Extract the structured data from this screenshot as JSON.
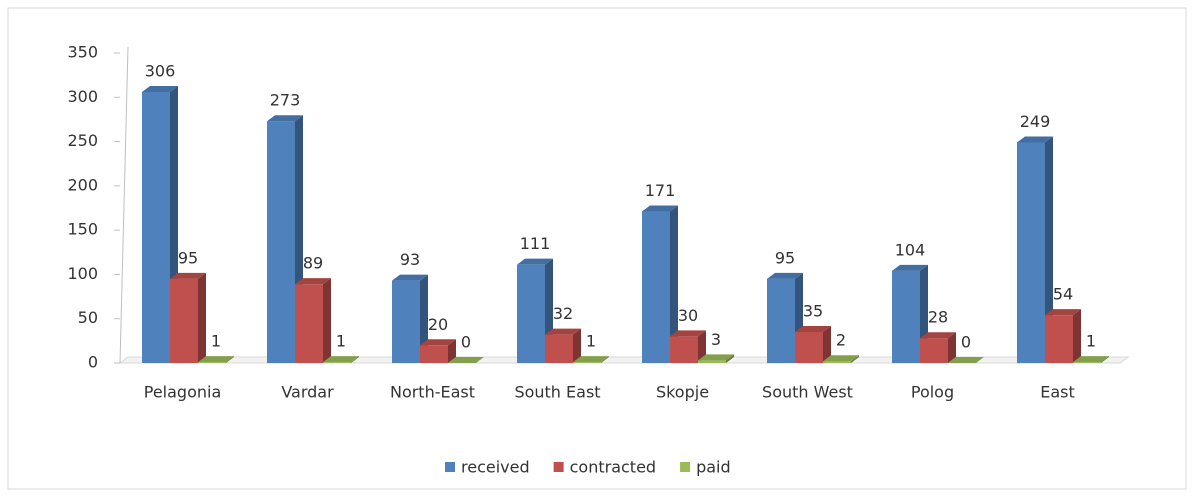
{
  "chart_data": {
    "type": "bar3d",
    "categories": [
      "Pelagonia",
      "Vardar",
      "North-East",
      "South East",
      "Skopje",
      "South West",
      "Polog",
      "East"
    ],
    "series": [
      {
        "name": "received",
        "color": "#4f81bd",
        "values": [
          306,
          273,
          93,
          111,
          171,
          95,
          104,
          249
        ]
      },
      {
        "name": "contracted",
        "color": "#c0504d",
        "values": [
          95,
          89,
          20,
          32,
          30,
          35,
          28,
          54
        ]
      },
      {
        "name": "paid",
        "color": "#9bbb59",
        "values": [
          1,
          1,
          0,
          1,
          3,
          2,
          0,
          1
        ]
      }
    ],
    "ylim": [
      0,
      350
    ],
    "yticks": [
      0,
      50,
      100,
      150,
      200,
      250,
      300,
      350
    ],
    "grid": false,
    "legend": "bottom"
  }
}
